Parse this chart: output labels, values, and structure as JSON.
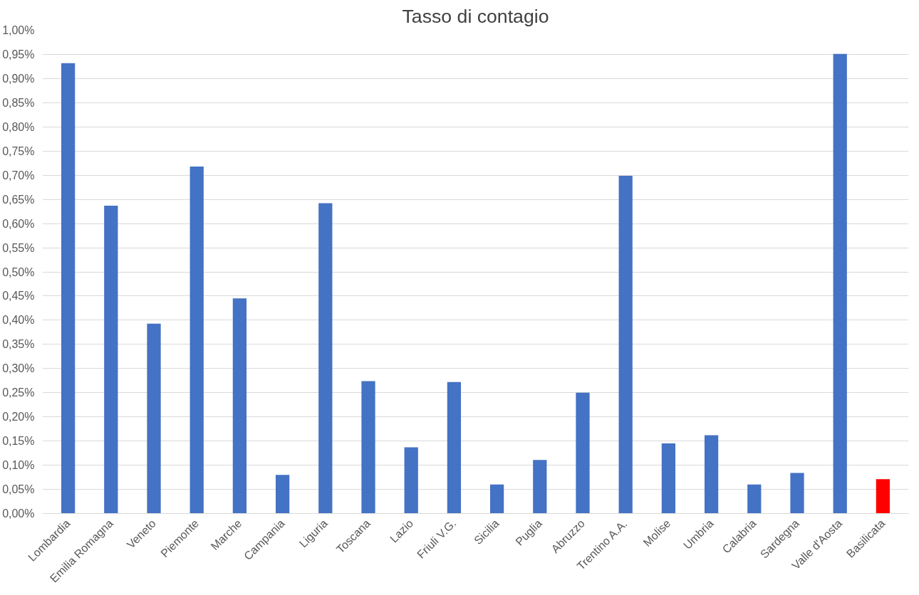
{
  "chart_data": {
    "type": "bar",
    "title": "Tasso di contagio",
    "categories": [
      "Lombardia",
      "Emilia Romagna",
      "Veneto",
      "Piemonte",
      "Marche",
      "Campania",
      "Liguria",
      "Toscana",
      "Lazio",
      "Friuli V.G.",
      "Sicilia",
      "Puglia",
      "Abruzzo",
      "Trentino A.A.",
      "Molise",
      "Umbria",
      "Calabria",
      "Sardegna",
      "Valle d'Aosta",
      "Basilicata"
    ],
    "values": [
      0.932,
      0.637,
      0.393,
      0.718,
      0.445,
      0.08,
      0.642,
      0.274,
      0.137,
      0.272,
      0.06,
      0.111,
      0.25,
      0.699,
      0.145,
      0.162,
      0.06,
      0.084,
      0.951,
      0.071
    ],
    "colors": [
      "#4472c4",
      "#4472c4",
      "#4472c4",
      "#4472c4",
      "#4472c4",
      "#4472c4",
      "#4472c4",
      "#4472c4",
      "#4472c4",
      "#4472c4",
      "#4472c4",
      "#4472c4",
      "#4472c4",
      "#4472c4",
      "#4472c4",
      "#4472c4",
      "#4472c4",
      "#4472c4",
      "#4472c4",
      "#ff0000"
    ],
    "ylim": [
      0,
      1
    ],
    "yticks": [
      {
        "value": 0,
        "label": "0,00%"
      },
      {
        "value": 0.05,
        "label": "0,05%"
      },
      {
        "value": 0.1,
        "label": "0,10%"
      },
      {
        "value": 0.15,
        "label": "0,15%"
      },
      {
        "value": 0.2,
        "label": "0,20%"
      },
      {
        "value": 0.25,
        "label": "0,25%"
      },
      {
        "value": 0.3,
        "label": "0,30%"
      },
      {
        "value": 0.35,
        "label": "0,35%"
      },
      {
        "value": 0.4,
        "label": "0,40%"
      },
      {
        "value": 0.45,
        "label": "0,45%"
      },
      {
        "value": 0.5,
        "label": "0,50%"
      },
      {
        "value": 0.55,
        "label": "0,55%"
      },
      {
        "value": 0.6,
        "label": "0,60%"
      },
      {
        "value": 0.65,
        "label": "0,65%"
      },
      {
        "value": 0.7,
        "label": "0,70%"
      },
      {
        "value": 0.75,
        "label": "0,75%"
      },
      {
        "value": 0.8,
        "label": "0,80%"
      },
      {
        "value": 0.85,
        "label": "0,85%"
      },
      {
        "value": 0.9,
        "label": "0,90%"
      },
      {
        "value": 0.95,
        "label": "0,95%"
      },
      {
        "value": 1,
        "label": "1,00%"
      }
    ],
    "grid": "y"
  }
}
